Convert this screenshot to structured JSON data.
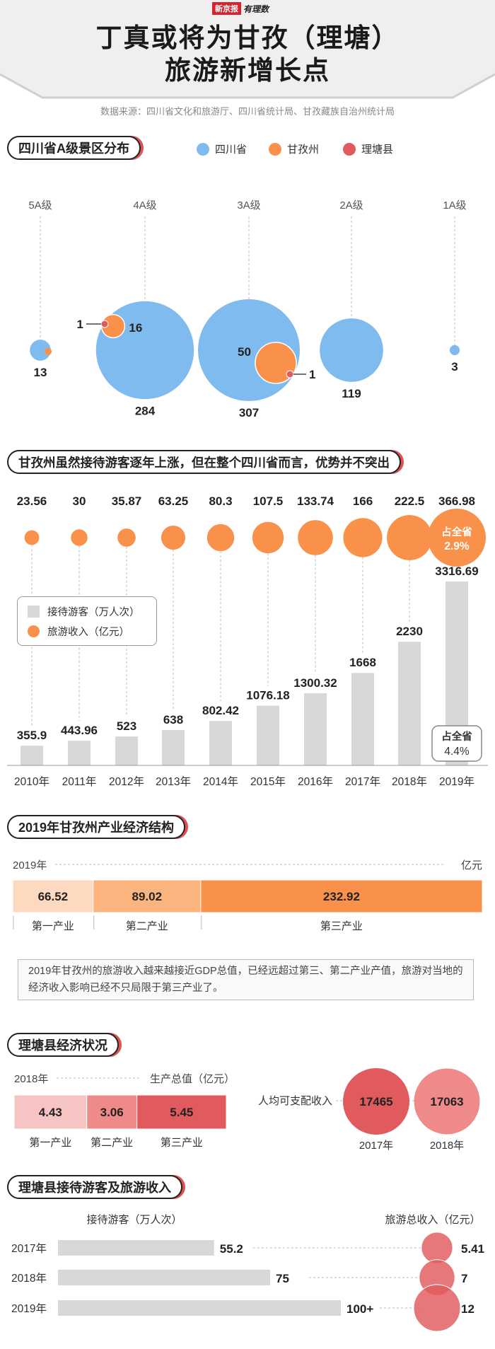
{
  "header": {
    "logo_brand": "新京报",
    "logo_sub": "有理数",
    "title_line1": "丁真或将为甘孜（理塘）",
    "title_line2": "旅游新增长点",
    "source": "数据来源：四川省文化和旅游厅、四川省统计局、甘孜藏族自治州统计局"
  },
  "colors": {
    "sichuan": "#7fbbef",
    "ganzi": "#f9914a",
    "litang": "#e05a5e",
    "bar_gray": "#d8d8d8"
  },
  "sections": {
    "s1_title": "四川省A级景区分布",
    "s2_title": "甘孜州虽然接待游客逐年上涨，但在整个四川省而言，优势并不突出",
    "s3_title": "2019年甘孜州产业经济结构",
    "s4_title": "理塘县经济状况",
    "s5_title": "理塘县接待游客及旅游收入"
  },
  "legend1": [
    "四川省",
    "甘孜州",
    "理塘县"
  ],
  "chart_data": [
    {
      "type": "bubble",
      "title": "四川省A级景区分布",
      "categories": [
        "5A级",
        "4A级",
        "3A级",
        "2A级",
        "1A级"
      ],
      "series": [
        {
          "name": "四川省",
          "values": [
            13,
            284,
            307,
            119,
            3
          ]
        },
        {
          "name": "甘孜州",
          "values": [
            null,
            16,
            50,
            null,
            null
          ]
        },
        {
          "name": "理塘县",
          "values": [
            null,
            1,
            1,
            null,
            null
          ]
        }
      ]
    },
    {
      "type": "bar",
      "title": "甘孜州虽然接待游客逐年上涨，但在整个四川省而言，优势并不突出",
      "categories": [
        "2010年",
        "2011年",
        "2012年",
        "2013年",
        "2014年",
        "2015年",
        "2016年",
        "2017年",
        "2018年",
        "2019年"
      ],
      "series": [
        {
          "name": "接待游客（万人次）",
          "values": [
            355.9,
            443.96,
            523,
            638,
            802.42,
            1076.18,
            1300.32,
            1668,
            2230,
            3316.69
          ]
        },
        {
          "name": "旅游收入（亿元）",
          "values": [
            23.56,
            30,
            35.87,
            63.25,
            80.3,
            107.5,
            133.74,
            166,
            222.5,
            366.98
          ]
        }
      ],
      "annotations": {
        "income_share_label": "占全省",
        "income_share": "2.9%",
        "visitor_share_label": "占全省",
        "visitor_share": "4.4%"
      }
    },
    {
      "type": "bar",
      "title": "2019年甘孜州产业经济结构",
      "year_label": "2019年",
      "unit": "亿元",
      "categories": [
        "第一产业",
        "第二产业",
        "第三产业"
      ],
      "values": [
        66.52,
        89.02,
        232.92
      ]
    },
    {
      "type": "bar",
      "title": "理塘县经济状况",
      "year_label": "2018年",
      "unit_label": "生产总值（亿元）",
      "categories": [
        "第一产业",
        "第二产业",
        "第三产业"
      ],
      "values": [
        4.43,
        3.06,
        5.45
      ],
      "income_label": "人均可支配收入",
      "income_years": [
        "2017年",
        "2018年"
      ],
      "income_values": [
        17465,
        17063
      ]
    },
    {
      "type": "bar",
      "title": "理塘县接待游客及旅游收入",
      "left_label": "接待游客（万人次）",
      "right_label": "旅游总收入（亿元）",
      "categories": [
        "2017年",
        "2018年",
        "2019年"
      ],
      "visitors": [
        55.2,
        75,
        100
      ],
      "visitor_labels": [
        "55.2",
        "75",
        "100+"
      ],
      "revenue": [
        5.41,
        7,
        12
      ],
      "revenue_labels": [
        "5.41",
        "7",
        "12"
      ]
    }
  ],
  "note": "2019年甘孜州的旅游收入越来越接近GDP总值，已经远超过第三、第二产业产值，旅游对当地的经济收入影响已经不只局限于第三产业了。"
}
